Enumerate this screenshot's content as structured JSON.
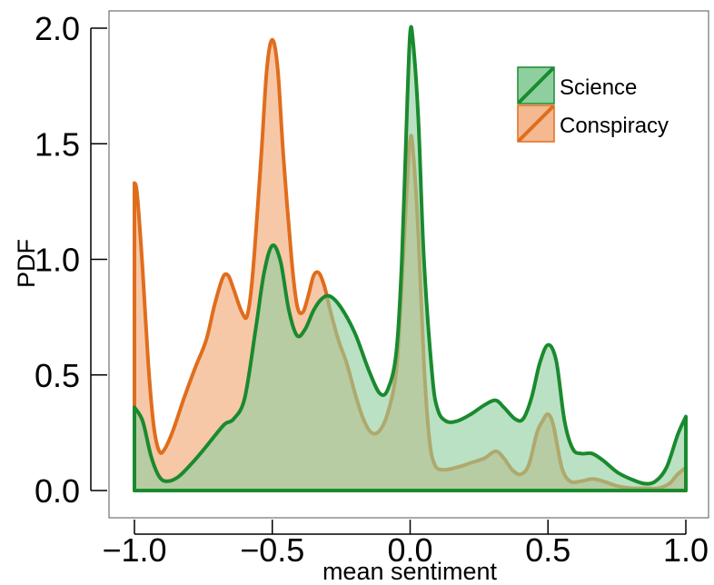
{
  "chart_data": {
    "type": "area",
    "title": "",
    "xlabel": "mean sentiment",
    "ylabel": "PDF",
    "xlim": [
      -1.1,
      1.1
    ],
    "ylim": [
      0,
      2.08
    ],
    "x_ticks": [
      "−1.0",
      "−0.5",
      "0.0",
      "0.5",
      "1.0"
    ],
    "x_tick_values": [
      -1.0,
      -0.5,
      0.0,
      0.5,
      1.0
    ],
    "y_ticks": [
      "0.0",
      "0.5",
      "1.0",
      "1.5",
      "2.0"
    ],
    "y_tick_values": [
      0.0,
      0.5,
      1.0,
      1.5,
      2.0
    ],
    "grid": false,
    "legend_position": "top-right",
    "series": [
      {
        "name": "Science",
        "color": "#1a8a2e",
        "fill": "#8fcf9f",
        "points": [
          [
            -1.0,
            0.36
          ],
          [
            -0.97,
            0.3
          ],
          [
            -0.94,
            0.15
          ],
          [
            -0.91,
            0.06
          ],
          [
            -0.88,
            0.04
          ],
          [
            -0.84,
            0.06
          ],
          [
            -0.79,
            0.12
          ],
          [
            -0.74,
            0.19
          ],
          [
            -0.7,
            0.25
          ],
          [
            -0.67,
            0.29
          ],
          [
            -0.64,
            0.31
          ],
          [
            -0.6,
            0.4
          ],
          [
            -0.56,
            0.7
          ],
          [
            -0.53,
            0.94
          ],
          [
            -0.5,
            1.06
          ],
          [
            -0.47,
            0.99
          ],
          [
            -0.44,
            0.78
          ],
          [
            -0.41,
            0.67
          ],
          [
            -0.38,
            0.7
          ],
          [
            -0.35,
            0.78
          ],
          [
            -0.32,
            0.83
          ],
          [
            -0.29,
            0.84
          ],
          [
            -0.25,
            0.79
          ],
          [
            -0.2,
            0.68
          ],
          [
            -0.15,
            0.52
          ],
          [
            -0.11,
            0.42
          ],
          [
            -0.08,
            0.44
          ],
          [
            -0.05,
            0.6
          ],
          [
            -0.03,
            1.0
          ],
          [
            -0.01,
            1.7
          ],
          [
            0.0,
            1.98
          ],
          [
            0.01,
            1.95
          ],
          [
            0.03,
            1.6
          ],
          [
            0.05,
            1.0
          ],
          [
            0.08,
            0.5
          ],
          [
            0.1,
            0.35
          ],
          [
            0.13,
            0.3
          ],
          [
            0.17,
            0.3
          ],
          [
            0.22,
            0.33
          ],
          [
            0.27,
            0.37
          ],
          [
            0.31,
            0.39
          ],
          [
            0.34,
            0.36
          ],
          [
            0.38,
            0.31
          ],
          [
            0.41,
            0.31
          ],
          [
            0.44,
            0.4
          ],
          [
            0.47,
            0.55
          ],
          [
            0.5,
            0.63
          ],
          [
            0.53,
            0.56
          ],
          [
            0.56,
            0.3
          ],
          [
            0.59,
            0.18
          ],
          [
            0.62,
            0.16
          ],
          [
            0.66,
            0.16
          ],
          [
            0.7,
            0.13
          ],
          [
            0.75,
            0.08
          ],
          [
            0.8,
            0.05
          ],
          [
            0.85,
            0.03
          ],
          [
            0.89,
            0.04
          ],
          [
            0.93,
            0.1
          ],
          [
            0.97,
            0.24
          ],
          [
            1.0,
            0.32
          ]
        ]
      },
      {
        "name": "Conspiracy",
        "color": "#e06d1d",
        "fill": "#f4b990",
        "points": [
          [
            -1.0,
            1.33
          ],
          [
            -0.99,
            1.28
          ],
          [
            -0.97,
            0.95
          ],
          [
            -0.95,
            0.55
          ],
          [
            -0.93,
            0.28
          ],
          [
            -0.91,
            0.17
          ],
          [
            -0.89,
            0.18
          ],
          [
            -0.86,
            0.26
          ],
          [
            -0.82,
            0.4
          ],
          [
            -0.78,
            0.53
          ],
          [
            -0.74,
            0.65
          ],
          [
            -0.71,
            0.8
          ],
          [
            -0.68,
            0.92
          ],
          [
            -0.66,
            0.93
          ],
          [
            -0.64,
            0.87
          ],
          [
            -0.61,
            0.77
          ],
          [
            -0.59,
            0.76
          ],
          [
            -0.57,
            0.95
          ],
          [
            -0.54,
            1.45
          ],
          [
            -0.52,
            1.82
          ],
          [
            -0.5,
            1.95
          ],
          [
            -0.48,
            1.82
          ],
          [
            -0.46,
            1.45
          ],
          [
            -0.43,
            1.0
          ],
          [
            -0.41,
            0.8
          ],
          [
            -0.39,
            0.77
          ],
          [
            -0.37,
            0.84
          ],
          [
            -0.35,
            0.93
          ],
          [
            -0.33,
            0.94
          ],
          [
            -0.31,
            0.88
          ],
          [
            -0.29,
            0.78
          ],
          [
            -0.26,
            0.65
          ],
          [
            -0.23,
            0.55
          ],
          [
            -0.2,
            0.42
          ],
          [
            -0.17,
            0.31
          ],
          [
            -0.14,
            0.25
          ],
          [
            -0.11,
            0.26
          ],
          [
            -0.08,
            0.34
          ],
          [
            -0.05,
            0.52
          ],
          [
            -0.03,
            0.9
          ],
          [
            -0.01,
            1.35
          ],
          [
            0.0,
            1.52
          ],
          [
            0.01,
            1.48
          ],
          [
            0.03,
            1.1
          ],
          [
            0.05,
            0.55
          ],
          [
            0.07,
            0.22
          ],
          [
            0.09,
            0.11
          ],
          [
            0.12,
            0.09
          ],
          [
            0.17,
            0.1
          ],
          [
            0.22,
            0.12
          ],
          [
            0.27,
            0.14
          ],
          [
            0.31,
            0.17
          ],
          [
            0.34,
            0.14
          ],
          [
            0.37,
            0.09
          ],
          [
            0.4,
            0.07
          ],
          [
            0.43,
            0.11
          ],
          [
            0.46,
            0.25
          ],
          [
            0.48,
            0.3
          ],
          [
            0.5,
            0.33
          ],
          [
            0.52,
            0.28
          ],
          [
            0.55,
            0.1
          ],
          [
            0.58,
            0.04
          ],
          [
            0.62,
            0.04
          ],
          [
            0.66,
            0.05
          ],
          [
            0.7,
            0.04
          ],
          [
            0.75,
            0.02
          ],
          [
            0.8,
            0.01
          ],
          [
            0.85,
            0.01
          ],
          [
            0.9,
            0.01
          ],
          [
            0.94,
            0.03
          ],
          [
            0.97,
            0.07
          ],
          [
            1.0,
            0.1
          ]
        ]
      }
    ]
  }
}
